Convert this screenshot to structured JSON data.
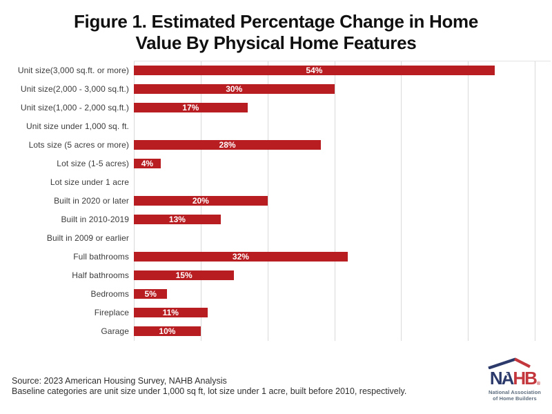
{
  "title": {
    "line1": "Figure 1. Estimated Percentage Change in Home",
    "line2": "Value By Physical Home Features"
  },
  "chart_data": {
    "type": "bar",
    "orientation": "horizontal",
    "title": "Figure 1. Estimated Percentage Change in Home Value By Physical Home Features",
    "xlabel": "",
    "ylabel": "",
    "xlim": [
      0,
      60
    ],
    "gridline_interval": 10,
    "grid": "vertical-only",
    "legend_position": "none",
    "axis_tick_labels_visible": false,
    "categories": [
      "Unit size(3,000 sq.ft. or more)",
      "Unit size(2,000 - 3,000 sq.ft.)",
      "Unit size(1,000 - 2,000 sq.ft.)",
      "Unit size under 1,000 sq. ft.",
      "Lots size (5 acres or more)",
      "Lot size (1-5 acres)",
      "Lot size under 1 acre",
      "Built in 2020 or later",
      "Built in 2010-2019",
      "Built in 2009 or earlier",
      "Full bathrooms",
      "Half bathrooms",
      "Bedrooms",
      "Fireplace",
      "Garage"
    ],
    "values": [
      54,
      30,
      17,
      null,
      28,
      4,
      null,
      20,
      13,
      null,
      32,
      15,
      5,
      11,
      10
    ],
    "value_labels": [
      "54%",
      "30%",
      "17%",
      "",
      "28%",
      "4%",
      "",
      "20%",
      "13%",
      "",
      "32%",
      "15%",
      "5%",
      "11%",
      "10%"
    ],
    "bar_color": "#b81d22",
    "value_label_color": "#ffffff",
    "gridline_color": "#d9d9d9"
  },
  "footer": {
    "source_line": "Source: 2023 American Housing Survey, NAHB Analysis",
    "baseline_line": "Baseline categories are unit size under 1,000 sq ft, lot size under 1 acre, built before 2010, respectively."
  },
  "logo": {
    "acronym_part1": "NA",
    "acronym_part2": "HB",
    "registered_mark": "®",
    "star": "★",
    "subtext_line1": "National Association",
    "subtext_line2": "of Home Builders",
    "navy": "#2b3a6b",
    "red": "#c2363c"
  }
}
